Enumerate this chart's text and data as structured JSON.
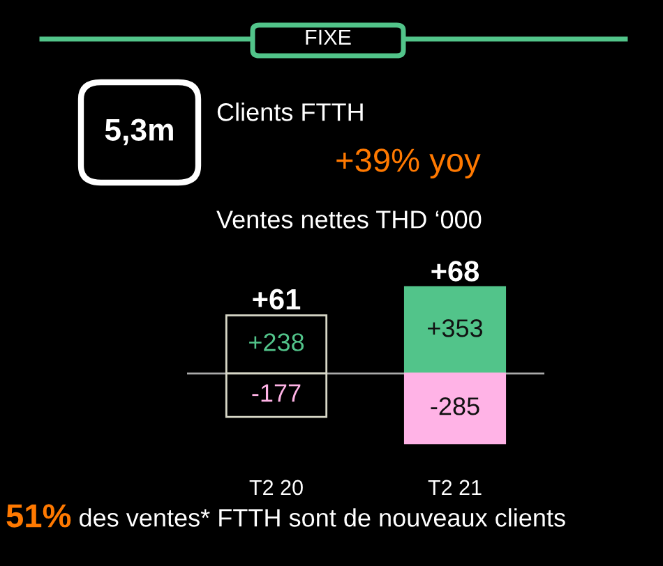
{
  "chart_data": {
    "type": "bar",
    "stacked": true,
    "title": "Ventes nettes THD ‘000",
    "categories": [
      "T2 20",
      "T2 21"
    ],
    "series": [
      {
        "color": "#52c48a",
        "colors": [
          "#000000",
          "#52c48a"
        ],
        "values": [
          238,
          353
        ],
        "value_labels": [
          "+238",
          "+353"
        ]
      },
      {
        "color": "#ffb3e6",
        "colors": [
          "#000000",
          "#ffb3e6"
        ],
        "values": [
          -177,
          -285
        ],
        "value_labels": [
          "-177",
          "-285"
        ]
      }
    ],
    "totals": [
      "+61",
      "+68"
    ],
    "annotations": [
      "FIXE",
      "5,3m",
      "Clients FTTH",
      "+39% yoy",
      "51%",
      " des ventes* FTTH sont de nouveaux clients"
    ],
    "legend": false,
    "grid": false
  }
}
